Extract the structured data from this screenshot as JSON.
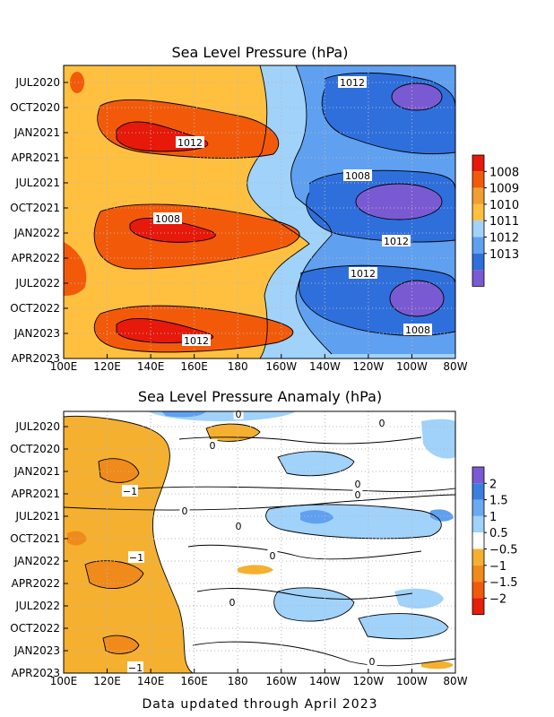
{
  "footer": "Data updated through April 2023",
  "chart_data": [
    {
      "type": "heatmap",
      "title": "Sea Level Pressure (hPa)",
      "x_ticks": [
        "100E",
        "120E",
        "140E",
        "160E",
        "180",
        "160W",
        "140W",
        "120W",
        "100W",
        "80W"
      ],
      "y_ticks": [
        "JUL2020",
        "OCT2020",
        "JAN2021",
        "APR2021",
        "JUL2021",
        "OCT2021",
        "JAN2022",
        "APR2022",
        "JUL2022",
        "OCT2022",
        "JAN2023",
        "APR2023"
      ],
      "grid": true,
      "legend": "right",
      "colorbar": {
        "levels": [
          "1008",
          "1009",
          "1010",
          "1011",
          "1012",
          "1013"
        ],
        "colors": [
          "#e6190a",
          "#f25a0a",
          "#f0a030",
          "#ffc040",
          "#a0d2fa",
          "#5fa0f0",
          "#2e6fdc",
          "#7a5ad2"
        ]
      },
      "contour_labels": [
        "1012",
        "1008",
        "1012",
        "1008",
        "1012",
        "1012",
        "1008",
        "1012"
      ]
    },
    {
      "type": "heatmap",
      "title": "Sea Level Pressure Anamaly (hPa)",
      "x_ticks": [
        "100E",
        "120E",
        "140E",
        "160E",
        "180",
        "160W",
        "140W",
        "120W",
        "100W",
        "80W"
      ],
      "y_ticks": [
        "JUL2020",
        "OCT2020",
        "JAN2021",
        "APR2021",
        "JUL2021",
        "OCT2021",
        "JAN2022",
        "APR2022",
        "JUL2022",
        "OCT2022",
        "JAN2023",
        "APR2023"
      ],
      "grid": true,
      "legend": "right",
      "colorbar": {
        "levels": [
          "2",
          "1.5",
          "1",
          "0.5",
          "−0.5",
          "−1",
          "−1.5",
          "−2"
        ],
        "colors": [
          "#7a5ad2",
          "#3a7ee0",
          "#6aaaf0",
          "#a0d2fa",
          "#ffffff",
          "#f5b030",
          "#f08a1a",
          "#f05a0a",
          "#e61e0a"
        ]
      },
      "contour_labels": [
        "0",
        "0",
        "0",
        "0",
        "0",
        "0",
        "0",
        "0",
        "0",
        "0",
        "−1",
        "−1",
        "−1"
      ]
    }
  ]
}
